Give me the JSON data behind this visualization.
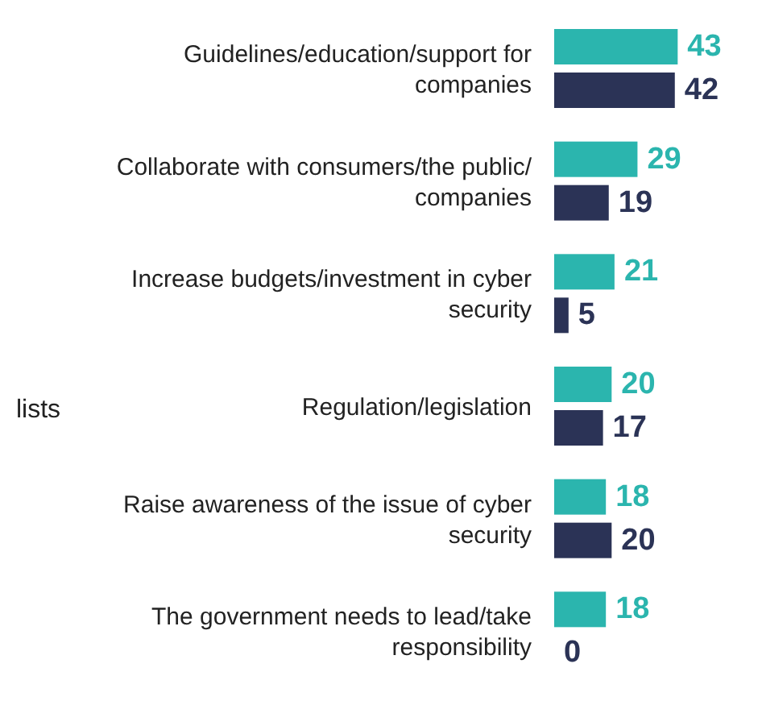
{
  "chart_data": {
    "type": "bar",
    "orientation": "horizontal",
    "data_labels": true,
    "categories": [
      "Guidelines/education/support for companies",
      "Collaborate with consumers/the public/ companies",
      "Increase budgets/investment in cyber security",
      "Regulation/legislation",
      "Raise awareness of the issue of cyber security",
      "The government needs to lead/take responsibility"
    ],
    "series": [
      {
        "color": "#2bb5ae",
        "values": [
          43,
          29,
          21,
          20,
          18,
          18
        ]
      },
      {
        "color": "#2b3356",
        "values": [
          42,
          19,
          5,
          17,
          20,
          0
        ]
      }
    ],
    "annotations": [
      "lists"
    ]
  }
}
